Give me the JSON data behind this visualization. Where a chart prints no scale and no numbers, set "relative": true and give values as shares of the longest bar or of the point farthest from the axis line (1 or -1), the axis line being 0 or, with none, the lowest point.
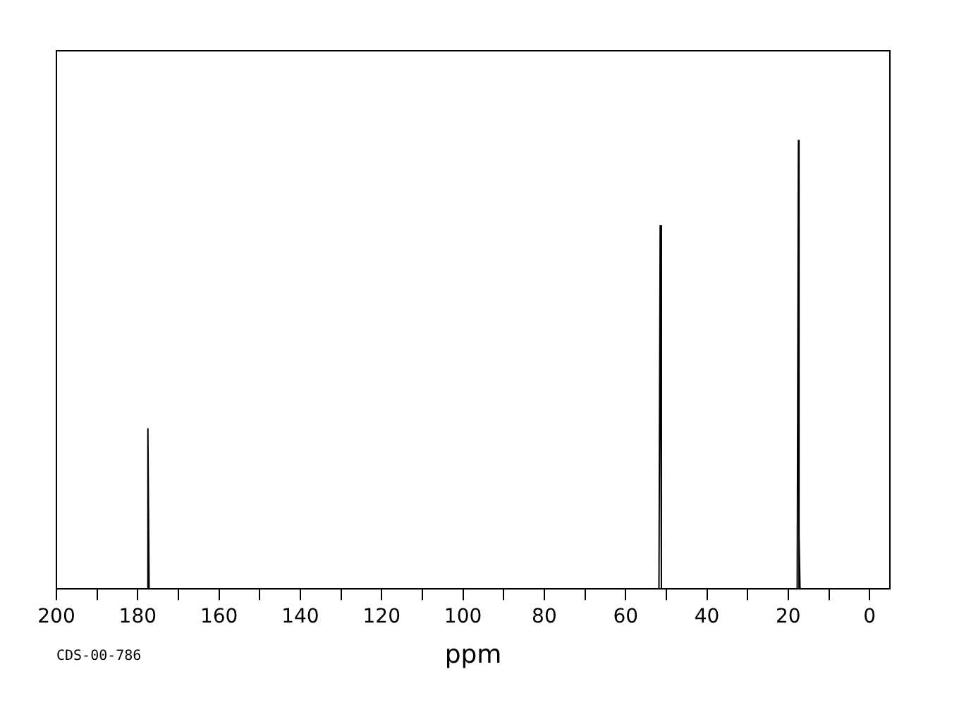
{
  "chart_data": {
    "type": "line",
    "relative": true,
    "xlabel": "ppm",
    "annotations": [
      "CDS-00-786"
    ],
    "xlim": [
      200,
      -5
    ],
    "xticks": [
      200,
      {
        "value": 190,
        "label": null
      },
      180,
      {
        "value": 170,
        "label": null
      },
      160,
      {
        "value": 150,
        "label": null
      },
      140,
      {
        "value": 130,
        "label": null
      },
      120,
      {
        "value": 110,
        "label": null
      },
      100,
      {
        "value": 90,
        "label": null
      },
      80,
      {
        "value": 70,
        "label": null
      },
      60,
      {
        "value": 50,
        "label": null
      },
      40,
      {
        "value": 30,
        "label": null
      },
      20,
      {
        "value": 10,
        "label": null
      },
      0
    ],
    "tick_labels": "x",
    "grid": false,
    "legend": false,
    "marker": "none",
    "line_style": "solid",
    "series": [
      {
        "color": "#000000",
        "x": [
          200,
          177.8,
          177.5,
          177.2,
          51.8,
          51.5,
          51.2,
          17.8,
          17.5,
          17.4,
          17.3,
          17.1,
          -5
        ],
        "values": [
          0,
          0,
          0.357,
          0,
          0,
          0.81,
          0,
          0,
          1,
          0,
          0.12,
          0,
          0
        ]
      }
    ]
  }
}
